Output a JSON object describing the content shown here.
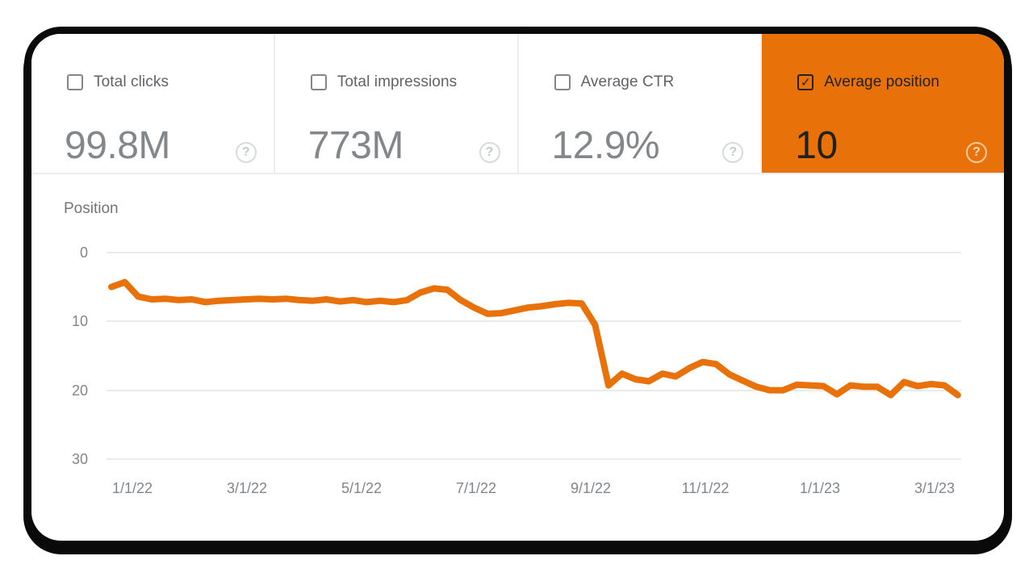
{
  "cards": [
    {
      "label": "Total clicks",
      "value": "99.8M",
      "checked": false
    },
    {
      "label": "Total impressions",
      "value": "773M",
      "checked": false
    },
    {
      "label": "Average CTR",
      "value": "12.9%",
      "checked": false
    },
    {
      "label": "Average position",
      "value": "10",
      "checked": true
    }
  ],
  "icons": {
    "help_glyph": "?",
    "checkmark_glyph": "✓"
  },
  "colors": {
    "accent_orange": "#E8710A",
    "selected_text": "#212121",
    "metric_value_gray": "#84878a",
    "metric_label_gray": "#5f6368",
    "axis_tick_gray": "#80868b",
    "gridline_gray": "#e9eaec",
    "frame_black": "#0a0a0a"
  },
  "chart_data": {
    "type": "line",
    "title": "Position",
    "y_axis_inverted": true,
    "ylim": [
      0,
      30
    ],
    "y_ticks": [
      0,
      10,
      20,
      30
    ],
    "grid": "horizontal",
    "legend": "none",
    "line_color": "#E8710A",
    "x_tick_labels": [
      "1/1/22",
      "3/1/22",
      "5/1/22",
      "7/1/22",
      "9/1/22",
      "11/1/22",
      "1/1/23",
      "3/1/23"
    ],
    "x_cadence": "weekly",
    "series": [
      {
        "name": "Average position",
        "values": [
          5.0,
          4.3,
          6.4,
          6.8,
          6.7,
          6.9,
          6.8,
          7.2,
          7.0,
          6.9,
          6.8,
          6.7,
          6.8,
          6.7,
          6.9,
          7.0,
          6.8,
          7.1,
          6.9,
          7.2,
          7.0,
          7.2,
          6.9,
          5.8,
          5.2,
          5.4,
          6.9,
          8.0,
          8.9,
          8.8,
          8.4,
          8.0,
          7.8,
          7.5,
          7.3,
          7.4,
          10.5,
          19.3,
          17.6,
          18.4,
          18.7,
          17.6,
          18.0,
          16.8,
          15.9,
          16.2,
          17.7,
          18.6,
          19.5,
          20.0,
          20.0,
          19.2,
          19.3,
          19.4,
          20.6,
          19.3,
          19.5,
          19.5,
          20.7,
          18.8,
          19.4,
          19.1,
          19.3,
          20.7
        ]
      }
    ]
  }
}
